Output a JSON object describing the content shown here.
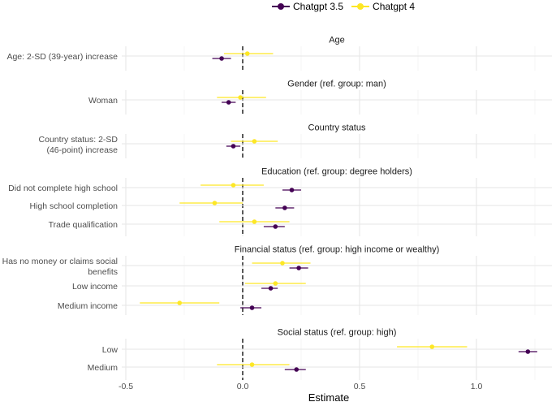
{
  "chart_data": {
    "type": "scatter",
    "subtype": "faceted coefficient plot with error bars",
    "xlabel": "Estimate",
    "xlim": [
      -0.5,
      1.35
    ],
    "xticks": [
      -0.5,
      0.0,
      0.5,
      1.0
    ],
    "xtick_labels": [
      "-0.5",
      "0.0",
      "0.5",
      "1.0"
    ],
    "reference_line": 0,
    "legend_position": "top",
    "series": [
      {
        "name": "Chatgpt 3.5",
        "color": "#440154"
      },
      {
        "name": "Chatgpt 4",
        "color": "#fde725"
      }
    ],
    "panels": [
      {
        "title": "Age",
        "rows": [
          {
            "label": [
              "Age: 2-SD (39-year) increase"
            ],
            "gpt35": {
              "est": -0.09,
              "lo": -0.13,
              "hi": -0.05
            },
            "gpt4": {
              "est": 0.02,
              "lo": -0.08,
              "hi": 0.13
            }
          }
        ]
      },
      {
        "title": "Gender (ref. group: man)",
        "rows": [
          {
            "label": [
              "Woman"
            ],
            "gpt35": {
              "est": -0.06,
              "lo": -0.09,
              "hi": -0.03
            },
            "gpt4": {
              "est": -0.01,
              "lo": -0.11,
              "hi": 0.1
            }
          }
        ]
      },
      {
        "title": "Country status",
        "rows": [
          {
            "label": [
              "Country status: 2-SD",
              "(46-point) increase"
            ],
            "gpt35": {
              "est": -0.04,
              "lo": -0.07,
              "hi": -0.01
            },
            "gpt4": {
              "est": 0.05,
              "lo": -0.05,
              "hi": 0.15
            }
          }
        ]
      },
      {
        "title": "Education (ref. group: degree holders)",
        "rows": [
          {
            "label": [
              "Did not complete high school"
            ],
            "gpt35": {
              "est": 0.21,
              "lo": 0.17,
              "hi": 0.25
            },
            "gpt4": {
              "est": -0.04,
              "lo": -0.18,
              "hi": 0.09
            }
          },
          {
            "label": [
              "High school completion"
            ],
            "gpt35": {
              "est": 0.18,
              "lo": 0.14,
              "hi": 0.22
            },
            "gpt4": {
              "est": -0.12,
              "lo": -0.27,
              "hi": 0.0
            }
          },
          {
            "label": [
              "Trade qualification"
            ],
            "gpt35": {
              "est": 0.14,
              "lo": 0.09,
              "hi": 0.18
            },
            "gpt4": {
              "est": 0.05,
              "lo": -0.1,
              "hi": 0.2
            }
          }
        ]
      },
      {
        "title": "Financial status (ref. group: high income or wealthy)",
        "rows": [
          {
            "label": [
              "Has no money or claims social",
              "benefits"
            ],
            "gpt35": {
              "est": 0.24,
              "lo": 0.2,
              "hi": 0.28
            },
            "gpt4": {
              "est": 0.17,
              "lo": 0.04,
              "hi": 0.29
            }
          },
          {
            "label": [
              "Low income"
            ],
            "gpt35": {
              "est": 0.12,
              "lo": 0.08,
              "hi": 0.15
            },
            "gpt4": {
              "est": 0.14,
              "lo": 0.01,
              "hi": 0.27
            }
          },
          {
            "label": [
              "Medium income"
            ],
            "gpt35": {
              "est": 0.04,
              "lo": -0.01,
              "hi": 0.08
            },
            "gpt4": {
              "est": -0.27,
              "lo": -0.44,
              "hi": -0.1
            }
          }
        ]
      },
      {
        "title": "Social status (ref. group: high)",
        "rows": [
          {
            "label": [
              "Low"
            ],
            "gpt35": {
              "est": 1.22,
              "lo": 1.18,
              "hi": 1.26
            },
            "gpt4": {
              "est": 0.81,
              "lo": 0.66,
              "hi": 0.96
            }
          },
          {
            "label": [
              "Medium"
            ],
            "gpt35": {
              "est": 0.23,
              "lo": 0.18,
              "hi": 0.27
            },
            "gpt4": {
              "est": 0.04,
              "lo": -0.11,
              "hi": 0.2
            }
          }
        ]
      }
    ]
  }
}
